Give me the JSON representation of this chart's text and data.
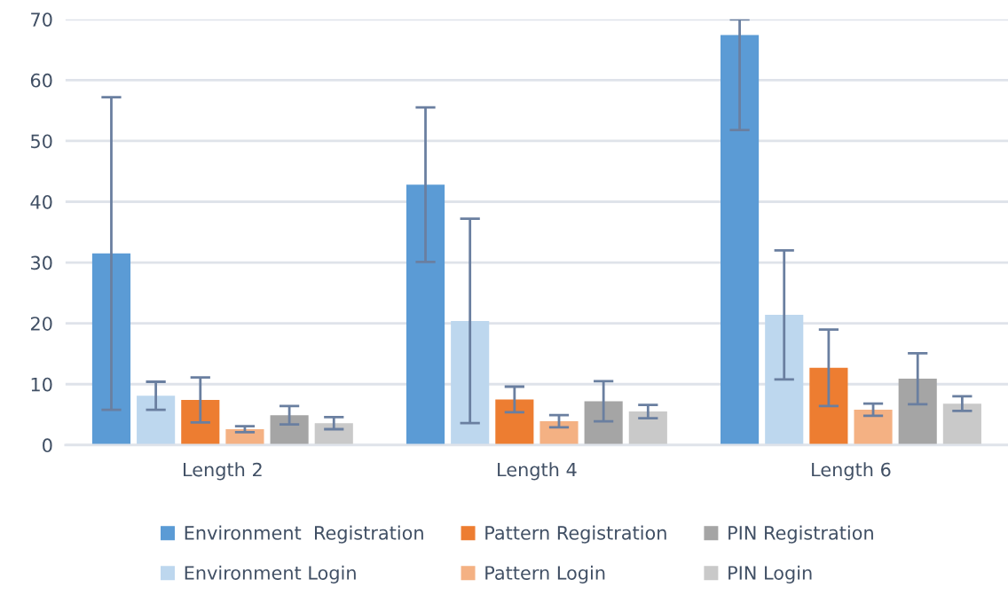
{
  "chart_data": {
    "type": "bar",
    "categories": [
      "Length 2",
      "Length 4",
      "Length 6"
    ],
    "series": [
      {
        "name": "Environment  Registration",
        "color": "#5b9bd5",
        "values": [
          31.5,
          42.8,
          67.4
        ],
        "errors": [
          25.7,
          12.7,
          [
            51.8,
            70
          ]
        ]
      },
      {
        "name": "Environment Login",
        "color": "#bdd7ee",
        "values": [
          8.1,
          20.4,
          21.4
        ],
        "errors": [
          2.3,
          16.8,
          10.6
        ]
      },
      {
        "name": "Pattern Registration",
        "color": "#ed7d31",
        "values": [
          7.4,
          7.5,
          12.7
        ],
        "errors": [
          3.7,
          2.1,
          6.3
        ]
      },
      {
        "name": "Pattern Login",
        "color": "#f4b183",
        "values": [
          2.6,
          3.9,
          5.8
        ],
        "errors": [
          0.5,
          1.0,
          1.0
        ]
      },
      {
        "name": "PIN Registration",
        "color": "#a5a5a5",
        "values": [
          4.9,
          7.2,
          10.9
        ],
        "errors": [
          1.5,
          3.3,
          4.2
        ]
      },
      {
        "name": "PIN Login",
        "color": "#c9c9c9",
        "values": [
          3.6,
          5.5,
          6.8
        ],
        "errors": [
          1.0,
          1.1,
          1.2
        ]
      }
    ],
    "ylim": [
      0,
      70
    ],
    "yticks": [
      0,
      10,
      20,
      30,
      40,
      50,
      60,
      70
    ],
    "grid": "y",
    "legend": "bottom"
  }
}
